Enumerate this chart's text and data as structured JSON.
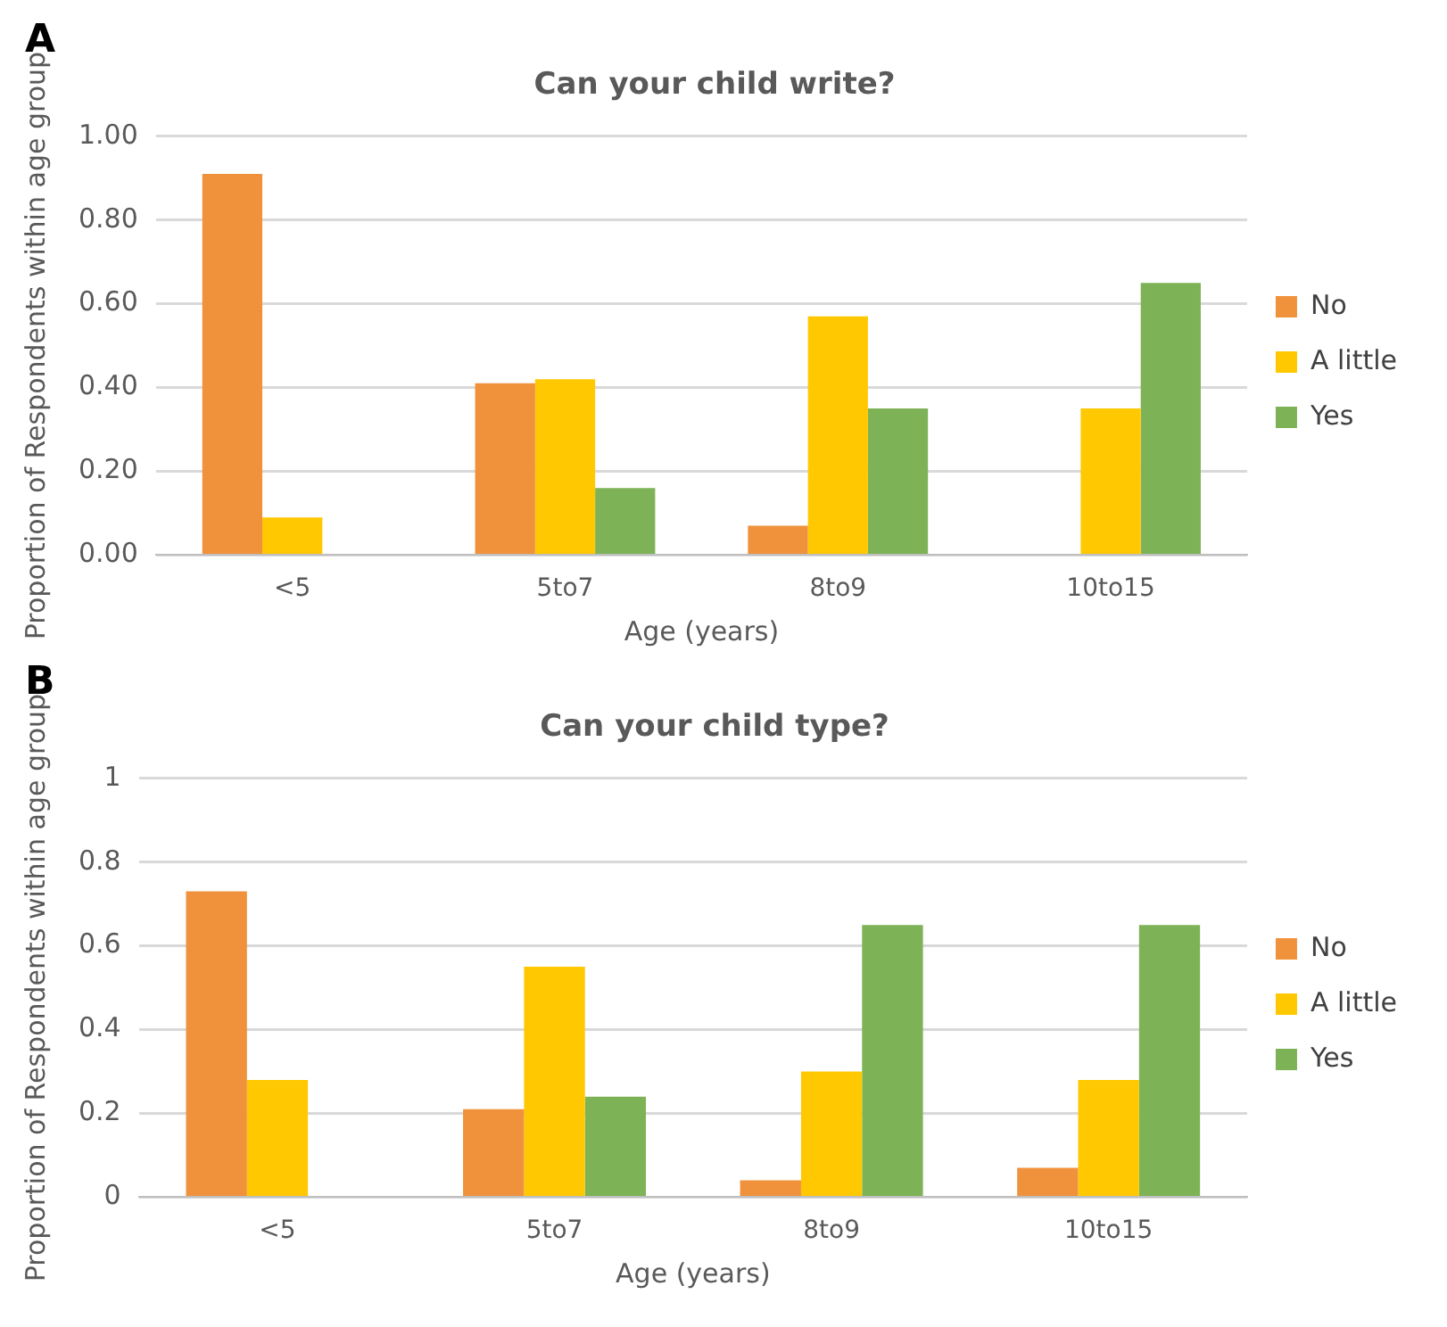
{
  "chart_data": [
    {
      "type": "bar",
      "title": "Can your child write?",
      "xlabel": "Age (years)",
      "ylabel": "Proportion of Respondents within age group",
      "annotations": [
        "A"
      ],
      "categories": [
        "<5",
        "5to7",
        "8to9",
        "10to15"
      ],
      "series": [
        {
          "name": "No",
          "color": "#f0913b",
          "values": [
            0.91,
            0.41,
            0.07,
            0
          ]
        },
        {
          "name": "A little",
          "color": "#ffc800",
          "values": [
            0.09,
            0.42,
            0.57,
            0.35
          ]
        },
        {
          "name": "Yes",
          "color": "#7db356",
          "values": [
            0,
            0.16,
            0.35,
            0.65
          ]
        }
      ],
      "ylim": [
        0,
        1
      ],
      "yticks": [
        {
          "value": 0,
          "label": "0.00"
        },
        {
          "value": 0.2,
          "label": "0.20"
        },
        {
          "value": 0.4,
          "label": "0.40"
        },
        {
          "value": 0.6,
          "label": "0.60"
        },
        {
          "value": 0.8,
          "label": "0.80"
        },
        {
          "value": 1,
          "label": "1.00"
        }
      ],
      "grid": "y",
      "legend": "right"
    },
    {
      "type": "bar",
      "title": "Can your child type?",
      "xlabel": "Age (years)",
      "ylabel": "Proportion of Respondents within age group",
      "annotations": [
        "B"
      ],
      "categories": [
        "<5",
        "5to7",
        "8to9",
        "10to15"
      ],
      "series": [
        {
          "name": "No",
          "color": "#f0913b",
          "values": [
            0.73,
            0.21,
            0.04,
            0.07
          ]
        },
        {
          "name": "A little",
          "color": "#ffc800",
          "values": [
            0.28,
            0.55,
            0.3,
            0.28
          ]
        },
        {
          "name": "Yes",
          "color": "#7db356",
          "values": [
            0,
            0.24,
            0.65,
            0.65
          ]
        }
      ],
      "ylim": [
        0,
        1
      ],
      "yticks": [
        0,
        0.2,
        0.4,
        0.6,
        0.8,
        1
      ],
      "grid": "y",
      "legend": "right"
    }
  ]
}
